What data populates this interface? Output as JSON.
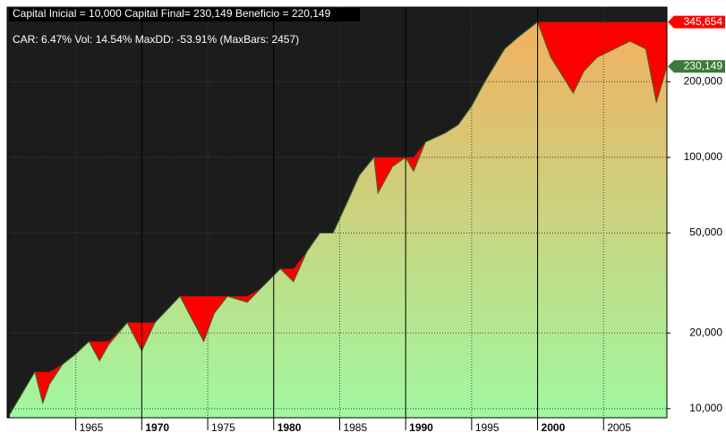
{
  "chart_data": {
    "type": "area",
    "title": "Capital Inicial = 10,000   Capital Final= 230,149   Beneficio = 220,149",
    "subtitle": "CAR: 6.47%  Vol: 14.54%  MaxDD: -53.91% (MaxBars: 2457)",
    "x": [
      1960.0,
      1961.9,
      1962.5,
      1963.0,
      1964.0,
      1965.0,
      1966.0,
      1966.8,
      1967.5,
      1968.9,
      1970.0,
      1971.0,
      1972.9,
      1974.7,
      1975.5,
      1976.5,
      1978.0,
      1979.0,
      1980.5,
      1981.5,
      1982.5,
      1983.5,
      1984.5,
      1985.5,
      1986.5,
      1987.6,
      1987.9,
      1989.0,
      1990.0,
      1990.6,
      1991.5,
      1993.0,
      1994.0,
      1995.0,
      1996.0,
      1997.5,
      1998.5,
      2000.0,
      2001.0,
      2002.7,
      2003.5,
      2004.5,
      2007.0,
      2008.2,
      2009.0,
      2009.8
    ],
    "values": [
      9500,
      14000,
      10500,
      12500,
      15000,
      16500,
      18500,
      15500,
      18000,
      22000,
      17000,
      22000,
      28000,
      18500,
      24000,
      28000,
      26500,
      30000,
      36000,
      32000,
      42000,
      50000,
      50000,
      65000,
      85000,
      100000,
      72000,
      92000,
      100000,
      88000,
      115000,
      125000,
      135000,
      160000,
      200000,
      270000,
      300000,
      345654,
      250000,
      180000,
      220000,
      250000,
      290000,
      270000,
      165000,
      230149
    ],
    "gradient": [
      "#a0f8a0",
      "#f2b060"
    ],
    "line_color": "#3a6a2a",
    "drawdown_color": "#ff0000",
    "log_scale": true,
    "grid": true,
    "xlim": [
      1959.8,
      2009.8
    ],
    "xticks": [
      1965,
      1970,
      1975,
      1980,
      1985,
      1990,
      1995,
      2000,
      2005
    ],
    "ylim": [
      9200,
      396000
    ],
    "yticks": [
      {
        "value": 10000,
        "label": "10,000"
      },
      {
        "value": 20000,
        "label": "20,000"
      },
      {
        "value": 50000,
        "label": "50,000"
      },
      {
        "value": 100000,
        "label": "100,000"
      },
      {
        "value": 200000,
        "label": "200,000"
      }
    ],
    "annotations": [
      {
        "value": 345654,
        "label": "345,654",
        "color": "#ff0000"
      },
      {
        "value": 230149,
        "label": "230,149",
        "color": "#3a7a3a"
      }
    ]
  }
}
